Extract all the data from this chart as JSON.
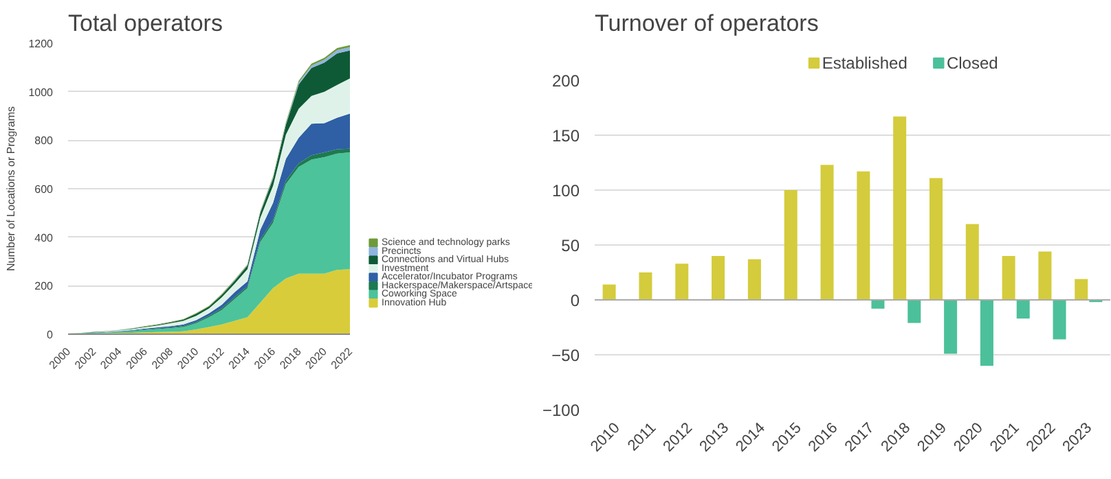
{
  "chart_data": [
    {
      "type": "area",
      "title": "Total operators",
      "ylabel": "Number of Locations or Programs",
      "stacked": true,
      "legend": "right",
      "grid": "y",
      "x": [
        2000,
        2001,
        2002,
        2003,
        2004,
        2005,
        2006,
        2007,
        2008,
        2009,
        2010,
        2011,
        2012,
        2013,
        2014,
        2015,
        2016,
        2017,
        2018,
        2019,
        2020,
        2021,
        2022
      ],
      "xlim": [
        2000,
        2022
      ],
      "xticks": [
        2000,
        2002,
        2004,
        2006,
        2008,
        2010,
        2012,
        2014,
        2016,
        2018,
        2020,
        2022
      ],
      "ylim": [
        0,
        1200
      ],
      "yticks": [
        0,
        200,
        400,
        600,
        800,
        1000,
        1200
      ],
      "series": [
        {
          "name": "Innovation Hub",
          "color": "#d9cc3a",
          "values": [
            1,
            2,
            3,
            4,
            5,
            6,
            8,
            9,
            10,
            12,
            20,
            30,
            40,
            55,
            70,
            130,
            190,
            230,
            250,
            250,
            250,
            265,
            268
          ]
        },
        {
          "name": "Coworking Space",
          "color": "#4cc39a",
          "values": [
            1,
            2,
            2,
            3,
            5,
            7,
            10,
            12,
            15,
            18,
            25,
            40,
            60,
            90,
            120,
            250,
            270,
            390,
            440,
            470,
            480,
            480,
            482
          ]
        },
        {
          "name": "Hackerspace/Makerspace/Artspace",
          "color": "#1e7a50",
          "values": [
            0,
            0,
            1,
            1,
            1,
            2,
            2,
            3,
            3,
            4,
            5,
            6,
            7,
            8,
            8,
            10,
            12,
            13,
            15,
            18,
            20,
            18,
            15
          ]
        },
        {
          "name": "Accelerator/Incubator Programs",
          "color": "#2f5fa5",
          "values": [
            0,
            0,
            1,
            1,
            2,
            2,
            3,
            4,
            5,
            6,
            8,
            10,
            15,
            20,
            20,
            40,
            70,
            90,
            105,
            130,
            120,
            130,
            145
          ]
        },
        {
          "name": "Investment",
          "color": "#dff2ea",
          "values": [
            0,
            1,
            1,
            2,
            3,
            4,
            6,
            8,
            12,
            15,
            18,
            20,
            30,
            35,
            50,
            50,
            70,
            100,
            120,
            115,
            130,
            135,
            145
          ]
        },
        {
          "name": "Connections and Virtual Hubs",
          "color": "#0f5a36",
          "values": [
            0,
            0,
            1,
            1,
            1,
            2,
            2,
            3,
            4,
            5,
            8,
            8,
            10,
            12,
            15,
            20,
            30,
            40,
            100,
            115,
            120,
            130,
            115
          ]
        },
        {
          "name": "Precincts",
          "color": "#8fb4e0",
          "values": [
            0,
            0,
            0,
            0,
            0,
            0,
            0,
            0,
            0,
            0,
            0,
            0,
            1,
            2,
            2,
            3,
            4,
            5,
            8,
            10,
            12,
            14,
            14
          ]
        },
        {
          "name": "Science and technology parks",
          "color": "#6e9a3a",
          "values": [
            1,
            1,
            1,
            1,
            1,
            1,
            2,
            2,
            2,
            2,
            3,
            3,
            3,
            3,
            3,
            4,
            5,
            6,
            7,
            8,
            8,
            8,
            8
          ]
        }
      ]
    },
    {
      "type": "bar",
      "title": "Turnover of operators",
      "legend": "top",
      "grid": "y",
      "categories": [
        "2010",
        "2011",
        "2012",
        "2013",
        "2014",
        "2015",
        "2016",
        "2017",
        "2018",
        "2019",
        "2020",
        "2021",
        "2022",
        "2023"
      ],
      "ylim": [
        -100,
        200
      ],
      "yticks": [
        -100,
        -50,
        0,
        50,
        100,
        150,
        200
      ],
      "series": [
        {
          "name": "Established",
          "color": "#d4cc3c",
          "values": [
            14,
            25,
            33,
            40,
            37,
            100,
            123,
            117,
            167,
            111,
            69,
            40,
            44,
            19
          ]
        },
        {
          "name": "Closed",
          "color": "#4cc09a",
          "values": [
            null,
            null,
            null,
            null,
            null,
            null,
            null,
            -8,
            -21,
            -49,
            -60,
            -17,
            -36,
            -2
          ]
        }
      ]
    }
  ]
}
